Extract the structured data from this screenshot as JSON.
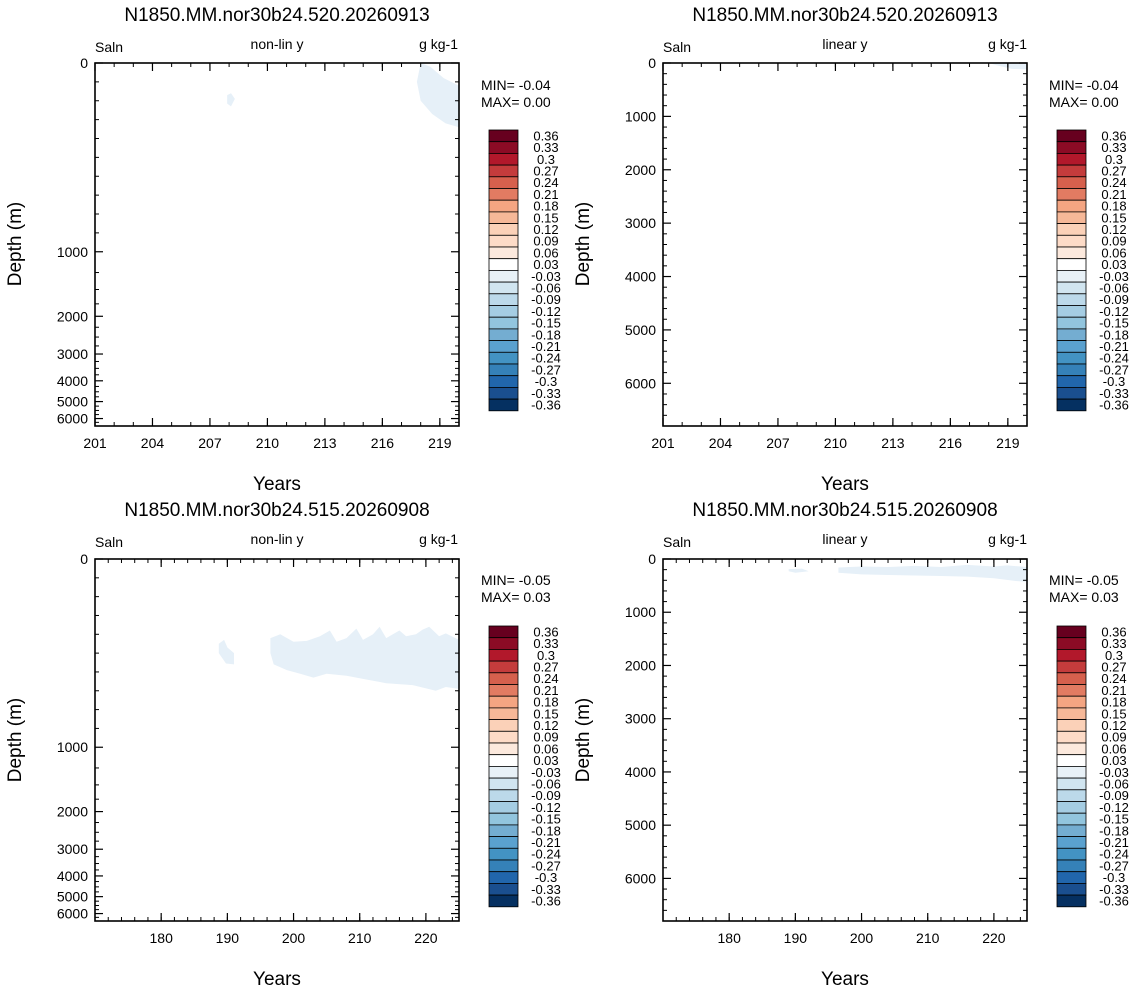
{
  "colorbar": {
    "labels": [
      "0.36",
      "0.33",
      "0.3",
      "0.27",
      "0.24",
      "0.21",
      "0.18",
      "0.15",
      "0.12",
      "0.09",
      "0.06",
      "0.03",
      "-0.03",
      "-0.06",
      "-0.09",
      "-0.12",
      "-0.15",
      "-0.18",
      "-0.21",
      "-0.24",
      "-0.27",
      "-0.3",
      "-0.33",
      "-0.36"
    ],
    "colors": [
      "#67001f",
      "#8c0b25",
      "#b2182b",
      "#c43c3c",
      "#d6604d",
      "#e27b62",
      "#f4a582",
      "#f6b898",
      "#fbd1b8",
      "#fddbc7",
      "#fce9dd",
      "#ffffff",
      "#e8f1f7",
      "#d1e5f0",
      "#bcd9ea",
      "#a5cde3",
      "#92c5de",
      "#74add1",
      "#5aa1cf",
      "#4393c3",
      "#3581b8",
      "#2166ac",
      "#1a4f8f",
      "#053061"
    ]
  },
  "chart_data": [
    {
      "type": "heatmap",
      "title": "N1850.MM.nor30b24.520.20260913",
      "left_label": "Saln",
      "center_label": "non-lin y",
      "right_label": "g kg-1",
      "xlabel": "Years",
      "ylabel": "Depth (m)",
      "xlim": [
        201,
        220
      ],
      "xticks": [
        201,
        204,
        207,
        210,
        213,
        216,
        219
      ],
      "yscale": "non-linear",
      "ylim": [
        0,
        6500
      ],
      "yticks": [
        0,
        1000,
        2000,
        3000,
        4000,
        5000,
        6000
      ],
      "stats": {
        "min": "MIN= -0.04",
        "max": "MAX=  0.00"
      },
      "filled_regions": [
        {
          "level": "-0.03 to 0.03",
          "color": "#e6f0f8",
          "points": [
            [
              218.0,
              0
            ],
            [
              218.5,
              20
            ],
            [
              219.2,
              80
            ],
            [
              220,
              120
            ],
            [
              220,
              340
            ],
            [
              219.3,
              320
            ],
            [
              218.6,
              270
            ],
            [
              218.0,
              200
            ],
            [
              217.8,
              100
            ]
          ]
        },
        {
          "level": "-0.03 to 0.03",
          "color": "#e6f0f8",
          "points": [
            [
              207.9,
              170
            ],
            [
              208.1,
              160
            ],
            [
              208.3,
              190
            ],
            [
              208.1,
              230
            ],
            [
              207.9,
              215
            ]
          ]
        }
      ]
    },
    {
      "type": "heatmap",
      "title": "N1850.MM.nor30b24.520.20260913",
      "left_label": "Saln",
      "center_label": "linear y",
      "right_label": "g kg-1",
      "xlabel": "Years",
      "ylabel": "Depth (m)",
      "xlim": [
        201,
        220
      ],
      "xticks": [
        201,
        204,
        207,
        210,
        213,
        216,
        219
      ],
      "yscale": "linear",
      "ylim": [
        0,
        6800
      ],
      "yticks": [
        0,
        1000,
        2000,
        3000,
        4000,
        5000,
        6000
      ],
      "stats": {
        "min": "MIN= -0.04",
        "max": "MAX=  0.00"
      },
      "filled_regions": [
        {
          "level": "-0.03 to 0.03",
          "color": "#e6f0f8",
          "points": [
            [
              218.0,
              0
            ],
            [
              220,
              0
            ],
            [
              220,
              120
            ],
            [
              219.2,
              110
            ],
            [
              218.4,
              40
            ]
          ]
        }
      ]
    },
    {
      "type": "heatmap",
      "title": "N1850.MM.nor30b24.515.20260908",
      "left_label": "Saln",
      "center_label": "non-lin y",
      "right_label": "g kg-1",
      "xlabel": "Years",
      "ylabel": "Depth (m)",
      "xlim": [
        170,
        225
      ],
      "xticks": [
        180,
        190,
        200,
        210,
        220
      ],
      "yscale": "non-linear",
      "ylim": [
        0,
        6500
      ],
      "yticks": [
        0,
        1000,
        2000,
        3000,
        4000,
        5000,
        6000
      ],
      "stats": {
        "min": "MIN= -0.05",
        "max": "MAX=  0.03"
      },
      "filled_regions": [
        {
          "level": "-0.03 to 0.03",
          "color": "#e6f0f8",
          "points": [
            [
              196.5,
              420
            ],
            [
              198,
              400
            ],
            [
              200,
              440
            ],
            [
              202,
              435
            ],
            [
              204,
              410
            ],
            [
              205.5,
              380
            ],
            [
              206.5,
              440
            ],
            [
              208,
              420
            ],
            [
              209.5,
              370
            ],
            [
              210.5,
              430
            ],
            [
              212,
              400
            ],
            [
              213,
              360
            ],
            [
              214,
              420
            ],
            [
              216,
              380
            ],
            [
              217,
              410
            ],
            [
              218.5,
              400
            ],
            [
              219.5,
              375
            ],
            [
              220.5,
              360
            ],
            [
              222,
              410
            ],
            [
              223,
              395
            ],
            [
              225,
              430
            ],
            [
              225,
              690
            ],
            [
              223,
              680
            ],
            [
              221.5,
              700
            ],
            [
              218,
              670
            ],
            [
              214,
              660
            ],
            [
              211,
              640
            ],
            [
              208,
              620
            ],
            [
              205,
              610
            ],
            [
              203,
              630
            ],
            [
              201,
              610
            ],
            [
              199,
              590
            ],
            [
              197,
              560
            ],
            [
              196.5,
              500
            ]
          ]
        },
        {
          "level": "-0.03 to 0.03",
          "color": "#e6f0f8",
          "points": [
            [
              188.7,
              450
            ],
            [
              189.5,
              430
            ],
            [
              190,
              470
            ],
            [
              191,
              500
            ],
            [
              191,
              560
            ],
            [
              189.8,
              555
            ],
            [
              188.7,
              500
            ]
          ]
        }
      ]
    },
    {
      "type": "heatmap",
      "title": "N1850.MM.nor30b24.515.20260908",
      "left_label": "Saln",
      "center_label": "linear y",
      "right_label": "g kg-1",
      "xlabel": "Years",
      "ylabel": "Depth (m)",
      "xlim": [
        170,
        225
      ],
      "xticks": [
        180,
        190,
        200,
        210,
        220
      ],
      "yscale": "linear",
      "ylim": [
        0,
        6800
      ],
      "yticks": [
        0,
        1000,
        2000,
        3000,
        4000,
        5000,
        6000
      ],
      "stats": {
        "min": "MIN= -0.05",
        "max": "MAX=  0.03"
      },
      "filled_regions": [
        {
          "level": "-0.03 to 0.03",
          "color": "#e6f0f8",
          "points": [
            [
              196.5,
              160
            ],
            [
              200,
              140
            ],
            [
              204,
              150
            ],
            [
              208,
              130
            ],
            [
              212,
              150
            ],
            [
              216,
              110
            ],
            [
              220,
              140
            ],
            [
              222,
              120
            ],
            [
              225,
              150
            ],
            [
              225,
              430
            ],
            [
              223,
              410
            ],
            [
              220,
              360
            ],
            [
              216,
              330
            ],
            [
              212,
              320
            ],
            [
              208,
              310
            ],
            [
              204,
              300
            ],
            [
              200,
              290
            ],
            [
              196.5,
              260
            ]
          ]
        },
        {
          "level": "-0.03 to 0.03",
          "color": "#e6f0f8",
          "points": [
            [
              189,
              190
            ],
            [
              191,
              180
            ],
            [
              192,
              230
            ],
            [
              190,
              260
            ],
            [
              189,
              230
            ]
          ]
        }
      ]
    }
  ]
}
